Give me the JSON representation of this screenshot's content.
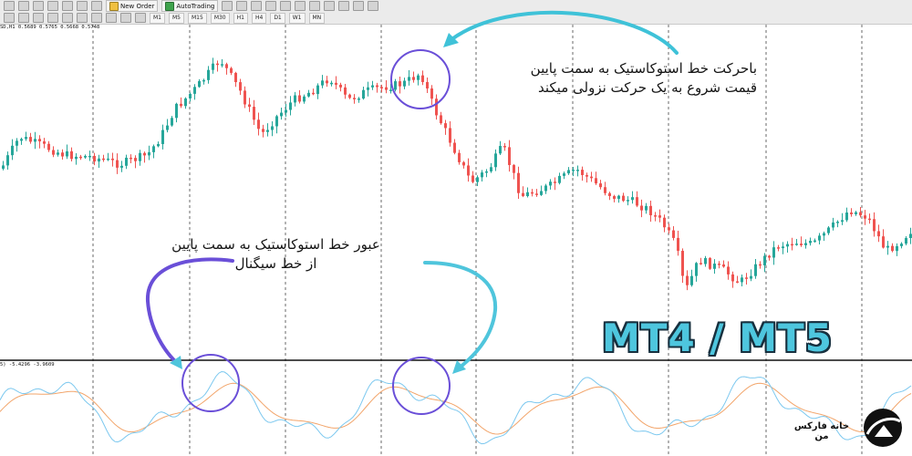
{
  "toolbar": {
    "new_order_label": "New Order",
    "autotrading_label": "AutoTrading",
    "timeframes": [
      "M1",
      "M5",
      "M15",
      "M30",
      "H1",
      "H4",
      "D1",
      "W1",
      "MN"
    ]
  },
  "main_chart": {
    "symbol_info": "SD,H1  0.5689 0.5765 0.5668 0.5748"
  },
  "indicator": {
    "label": "5)  -5.4296  -3.9609"
  },
  "annotations": {
    "top_line1": "باحرکت خط استوکاستیک به سمت پایین",
    "top_line2": "قیمت شروع به یک حرکت نزولی میکند",
    "bottom_line1": "عبور خط استوکاستیک به سمت پایین",
    "bottom_line2": "از خط سیگنال"
  },
  "overlay_title": "MT4 / MT5",
  "brand": {
    "name": "خانه فارکس من"
  },
  "colors": {
    "bull_candle": "#26a69a",
    "bear_candle": "#ef5350",
    "stochastic_main": "#7cc8ef",
    "stochastic_signal": "#f2a56b",
    "arrow": "#3fc2d8",
    "highlight_circle": "#6a4fd8",
    "overlay_text": "#4ec6de"
  }
}
